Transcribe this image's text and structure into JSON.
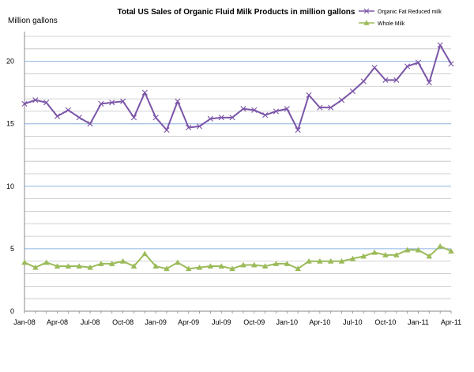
{
  "chart_data": {
    "type": "line",
    "title": "Total US Sales of Organic Fluid Milk Products in million gallons",
    "ylabel": "Million gallons",
    "xlabel": "",
    "ylim": [
      0,
      22
    ],
    "y_ticks": [
      0,
      5,
      10,
      15,
      20
    ],
    "grid": true,
    "legend": "top-right",
    "x_labels": [
      "Jan-08",
      "Apr-08",
      "Jul-08",
      "Oct-08",
      "Jan-09",
      "Apr-09",
      "Jul-09",
      "Oct-09",
      "Jan-10",
      "Apr-10",
      "Jul-10",
      "Oct-10",
      "Jan-11",
      "Apr-11"
    ],
    "x": [
      "Jan-08",
      "Feb-08",
      "Mar-08",
      "Apr-08",
      "May-08",
      "Jun-08",
      "Jul-08",
      "Aug-08",
      "Sep-08",
      "Oct-08",
      "Nov-08",
      "Dec-08",
      "Jan-09",
      "Feb-09",
      "Mar-09",
      "Apr-09",
      "May-09",
      "Jun-09",
      "Jul-09",
      "Aug-09",
      "Sep-09",
      "Oct-09",
      "Nov-09",
      "Dec-09",
      "Jan-10",
      "Feb-10",
      "Mar-10",
      "Apr-10",
      "May-10",
      "Jun-10",
      "Jul-10",
      "Aug-10",
      "Sep-10",
      "Oct-10",
      "Nov-10",
      "Dec-10",
      "Jan-11",
      "Feb-11",
      "Mar-11",
      "Apr-11"
    ],
    "series": [
      {
        "name": "Organic Fat Reduced milk",
        "color": "#7B55A8",
        "marker": "x",
        "values": [
          16.6,
          16.9,
          16.7,
          15.6,
          16.1,
          15.5,
          15.0,
          16.6,
          16.7,
          16.8,
          15.5,
          17.5,
          15.5,
          14.5,
          16.8,
          14.7,
          14.8,
          15.4,
          15.5,
          15.5,
          16.2,
          16.1,
          15.7,
          16.0,
          16.2,
          14.5,
          17.3,
          16.3,
          16.3,
          16.9,
          17.6,
          18.4,
          19.5,
          18.5,
          18.5,
          19.6,
          19.9,
          18.3,
          21.3,
          19.8
        ]
      },
      {
        "name": "Whole Milk",
        "color": "#9BBB59",
        "marker": "triangle",
        "values": [
          3.9,
          3.5,
          3.9,
          3.6,
          3.6,
          3.6,
          3.5,
          3.8,
          3.8,
          4.0,
          3.6,
          4.6,
          3.6,
          3.4,
          3.9,
          3.4,
          3.5,
          3.6,
          3.6,
          3.4,
          3.7,
          3.7,
          3.6,
          3.8,
          3.8,
          3.4,
          4.0,
          4.0,
          4.0,
          4.0,
          4.2,
          4.4,
          4.7,
          4.5,
          4.5,
          4.9,
          4.9,
          4.4,
          5.2,
          4.8
        ]
      }
    ]
  }
}
